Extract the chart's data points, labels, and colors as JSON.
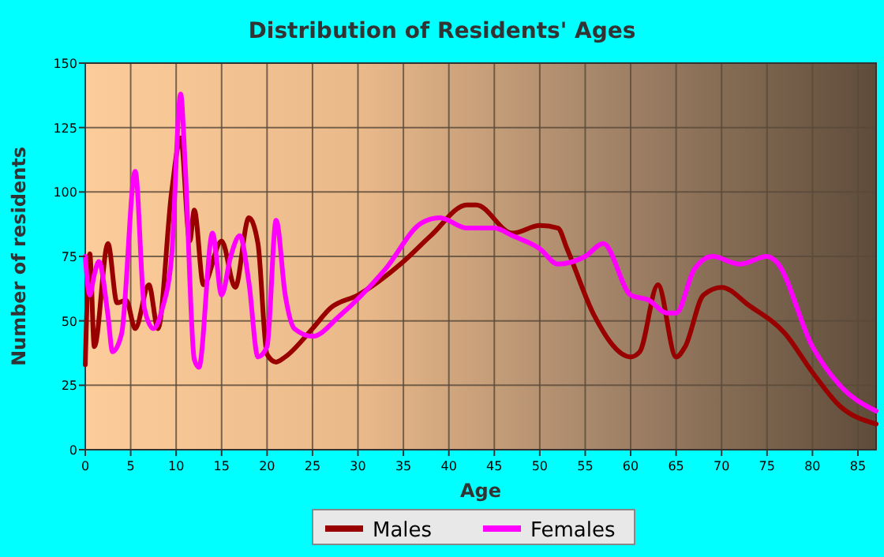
{
  "chart_data": {
    "type": "line",
    "title": "Distribution of Residents' Ages",
    "xlabel": "Age",
    "ylabel": "Number of residents",
    "xlim": [
      0,
      87
    ],
    "xticks": [
      0,
      5,
      10,
      15,
      20,
      25,
      30,
      35,
      40,
      45,
      50,
      55,
      60,
      65,
      70,
      75,
      80,
      85
    ],
    "ylim": [
      0,
      150
    ],
    "yticks": [
      0,
      25,
      50,
      75,
      100,
      125,
      150
    ],
    "grid": true,
    "legend": "bottom",
    "marker": "none",
    "line_style": "solid",
    "series": [
      {
        "name": "Males",
        "color": "#990000",
        "x": [
          0,
          0.5,
          1,
          2.5,
          3.5,
          4.5,
          5.5,
          7,
          8,
          9.5,
          10.5,
          11.5,
          12,
          13,
          15,
          16.5,
          18,
          19,
          20,
          21,
          22,
          25,
          27,
          30,
          35,
          38,
          42,
          43,
          47,
          50,
          52,
          53,
          56,
          60,
          61,
          63,
          65,
          66,
          68,
          70,
          73,
          77,
          80,
          83,
          87
        ],
        "values": [
          33,
          76,
          40,
          80,
          57,
          58,
          47,
          64,
          47,
          100,
          121,
          81,
          93,
          64,
          81,
          63,
          90,
          80,
          37,
          34,
          36,
          47,
          55,
          60,
          73,
          83,
          95,
          95,
          84,
          87,
          86,
          78,
          52,
          36,
          38,
          64,
          36,
          40,
          60,
          63,
          56,
          45,
          30,
          17,
          10
        ]
      },
      {
        "name": "Females",
        "color": "#ff00ff",
        "x": [
          0,
          0.5,
          1,
          1.5,
          2.5,
          3,
          4,
          5.5,
          6.5,
          7.5,
          8.5,
          9.5,
          10.5,
          11,
          12,
          12.5,
          14,
          15,
          16,
          17,
          18,
          19,
          20,
          21,
          22,
          23,
          25,
          28,
          33,
          37,
          39,
          42,
          45,
          47,
          50,
          52,
          55,
          57,
          60,
          62,
          64,
          65,
          67,
          69,
          72,
          75,
          76,
          80,
          83,
          87
        ],
        "values": [
          75,
          60,
          68,
          73,
          52,
          38,
          45,
          108,
          55,
          47,
          55,
          75,
          138,
          110,
          35,
          32,
          84,
          60,
          75,
          83,
          65,
          36,
          40,
          89,
          60,
          47,
          44,
          52,
          70,
          88,
          90,
          86,
          86,
          83,
          78,
          72,
          75,
          80,
          60,
          58,
          53,
          53,
          70,
          75,
          72,
          75,
          73,
          40,
          25,
          15
        ]
      }
    ]
  }
}
